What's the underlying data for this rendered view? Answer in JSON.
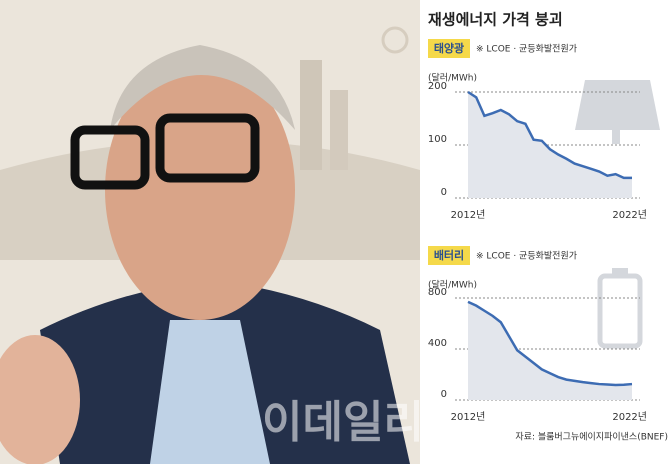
{
  "title": "재생에너지 가격 붕괴",
  "source": "자료: 블룸버그뉴에이지파이낸스(BNEF)",
  "watermark": "이데일리",
  "chart_data": [
    {
      "type": "line",
      "title": "태양광",
      "subtitle": "※ LCOE · 균등화발전원가",
      "y_label": "(달러/MWh)",
      "categories": [
        "2012년",
        null,
        null,
        null,
        null,
        null,
        null,
        null,
        null,
        null,
        null,
        null,
        null,
        null,
        null,
        null,
        null,
        null,
        null,
        null,
        "2022년"
      ],
      "values": [
        200,
        190,
        155,
        160,
        166,
        158,
        145,
        140,
        110,
        108,
        92,
        82,
        74,
        65,
        60,
        55,
        50,
        42,
        45,
        38,
        38
      ],
      "color": "#3d6cb3",
      "ylim": [
        0,
        210
      ],
      "yticks": [
        0,
        100,
        200
      ],
      "grid": true
    },
    {
      "type": "line",
      "title": "배터리",
      "subtitle": "※ LCOE · 균등화발전원가",
      "y_label": "(달러/MWh)",
      "categories": [
        "2012년",
        null,
        null,
        null,
        null,
        null,
        null,
        null,
        null,
        null,
        null,
        null,
        null,
        null,
        null,
        null,
        null,
        null,
        null,
        null,
        "2022년"
      ],
      "values": [
        770,
        740,
        700,
        660,
        610,
        500,
        390,
        340,
        290,
        240,
        210,
        180,
        160,
        150,
        140,
        132,
        125,
        122,
        118,
        120,
        125
      ],
      "color": "#3d6cb3",
      "ylim": [
        0,
        840
      ],
      "yticks": [
        0,
        400,
        800
      ],
      "grid": true
    }
  ]
}
